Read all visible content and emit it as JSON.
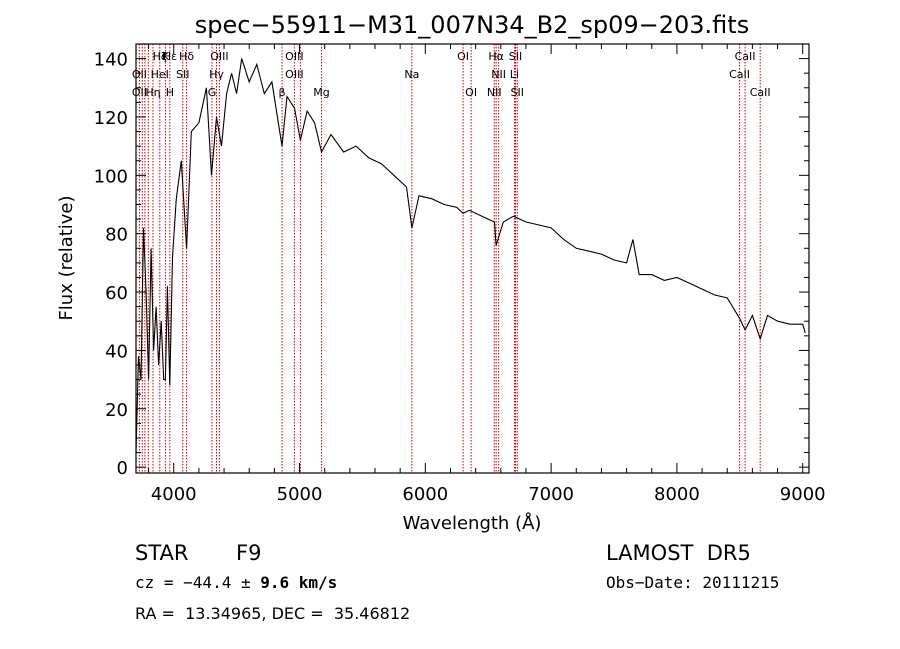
{
  "chart_data": {
    "type": "line",
    "title": "spec−55911−M31_007N34_B2_sp09−203.fits",
    "xlabel": "Wavelength (Å)",
    "ylabel": "Flux (relative)",
    "xlim": [
      3700,
      9050
    ],
    "ylim": [
      -2,
      145
    ],
    "x_ticks": [
      4000,
      5000,
      6000,
      7000,
      8000,
      9000
    ],
    "y_ticks": [
      0,
      20,
      40,
      60,
      80,
      100,
      120,
      140
    ],
    "grid": false,
    "series": [
      {
        "x": [
          3700,
          3720,
          3740,
          3760,
          3780,
          3800,
          3820,
          3840,
          3860,
          3880,
          3900,
          3920,
          3934,
          3950,
          3969,
          3990,
          4020,
          4060,
          4102,
          4140,
          4200,
          4260,
          4300,
          4340,
          4380,
          4420,
          4460,
          4500,
          4540,
          4600,
          4660,
          4720,
          4780,
          4861,
          4900,
          4960,
          5007,
          5060,
          5120,
          5175,
          5250,
          5350,
          5450,
          5550,
          5650,
          5750,
          5850,
          5893,
          5950,
          6050,
          6150,
          6250,
          6300,
          6350,
          6450,
          6550,
          6563,
          6620,
          6700,
          6800,
          6900,
          7000,
          7100,
          7200,
          7300,
          7400,
          7500,
          7600,
          7650,
          7700,
          7800,
          7900,
          8000,
          8100,
          8200,
          8300,
          8400,
          8498,
          8542,
          8600,
          8662,
          8720,
          8800,
          8900,
          9000,
          9020
        ],
        "y": [
          5,
          38,
          30,
          82,
          60,
          30,
          75,
          40,
          55,
          35,
          50,
          30,
          30,
          62,
          28,
          72,
          92,
          105,
          75,
          115,
          118,
          130,
          100,
          120,
          110,
          128,
          135,
          128,
          140,
          132,
          138,
          128,
          132,
          110,
          127,
          123,
          112,
          122,
          118,
          108,
          114,
          108,
          110,
          106,
          104,
          100,
          96,
          82,
          93,
          92,
          90,
          89,
          87,
          88,
          86,
          84,
          76,
          84,
          86,
          84,
          83,
          82,
          78,
          75,
          74,
          73,
          71,
          70,
          78,
          66,
          66,
          64,
          65,
          63,
          61,
          59,
          58,
          51,
          47,
          52,
          44,
          52,
          50,
          49,
          49,
          46
        ]
      }
    ],
    "line_labels": [
      {
        "label": "Hε",
        "wave": 3970,
        "row": 0
      },
      {
        "label": "Hζ",
        "wave": 3889,
        "row": 0
      },
      {
        "label": "K",
        "wave": 3934,
        "row": 0
      },
      {
        "label": "Hδ",
        "wave": 4102,
        "row": 0
      },
      {
        "label": "OIII",
        "wave": 4363,
        "row": 0
      },
      {
        "label": "OIII",
        "wave": 4959,
        "row": 0
      },
      {
        "label": "OI",
        "wave": 6300,
        "row": 0
      },
      {
        "label": "Hα",
        "wave": 6563,
        "row": 0
      },
      {
        "label": "SII",
        "wave": 6717,
        "row": 0
      },
      {
        "label": "CaII",
        "wave": 8542,
        "row": 0
      },
      {
        "label": "OII",
        "wave": 3727,
        "row": 1
      },
      {
        "label": "HeI",
        "wave": 3889,
        "row": 1
      },
      {
        "label": "SII",
        "wave": 4072,
        "row": 1
      },
      {
        "label": "Hγ",
        "wave": 4340,
        "row": 1
      },
      {
        "label": "OIII",
        "wave": 4959,
        "row": 1
      },
      {
        "label": "Na",
        "wave": 5893,
        "row": 1
      },
      {
        "label": "NII",
        "wave": 6583,
        "row": 1
      },
      {
        "label": "Li",
        "wave": 6708,
        "row": 1
      },
      {
        "label": "CaII",
        "wave": 8498,
        "row": 1
      },
      {
        "label": "OII",
        "wave": 3727,
        "row": 2
      },
      {
        "label": "Hη",
        "wave": 3835,
        "row": 2
      },
      {
        "label": "H",
        "wave": 3969,
        "row": 2
      },
      {
        "label": "G",
        "wave": 4304,
        "row": 2
      },
      {
        "label": "β",
        "wave": 4861,
        "row": 2
      },
      {
        "label": "Mg",
        "wave": 5175,
        "row": 2
      },
      {
        "label": "OI",
        "wave": 6364,
        "row": 2
      },
      {
        "label": "NII",
        "wave": 6548,
        "row": 2
      },
      {
        "label": "SII",
        "wave": 6731,
        "row": 2
      },
      {
        "label": "CaII",
        "wave": 8662,
        "row": 2
      }
    ],
    "line_markers": [
      3727,
      3750,
      3771,
      3798,
      3835,
      3889,
      3934,
      3969,
      4072,
      4102,
      4304,
      4340,
      4363,
      4861,
      4959,
      5007,
      5175,
      5893,
      6300,
      6364,
      6548,
      6563,
      6583,
      6708,
      6717,
      6731,
      8498,
      8542,
      8662
    ],
    "marker_color": "#cc0000",
    "line_color": "#000000"
  },
  "info": {
    "class": "STAR",
    "subclass": "F9",
    "survey": "LAMOST  DR5",
    "cz_prefix": "cz = −44.4 ± ",
    "cz_err": "9.6",
    "cz_unit": " km/s",
    "obs_date": "Obs−Date: 20111215",
    "radec": "RA =  13.34965, DEC =  35.46812"
  }
}
